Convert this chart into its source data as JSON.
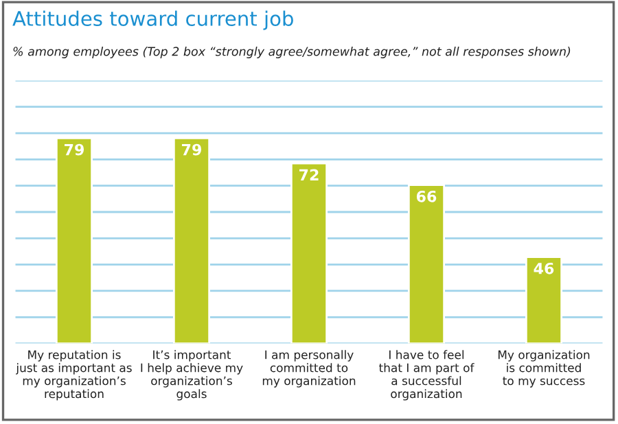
{
  "chart_data": {
    "type": "bar",
    "title": "Attitudes toward current job",
    "subtitle": "% among employees (Top 2 box “strongly agree/somewhat agree,” not all responses shown)",
    "categories": [
      "My reputation is\njust as important as\nmy organization’s\nreputation",
      "It’s important\nI help achieve my\norganization’s\ngoals",
      "I am personally\ncommitted to\nmy organization",
      "I have to feel\nthat I am part of\na successful\norganization",
      "My organization\nis committed\nto my success"
    ],
    "values": [
      79,
      79,
      72,
      66,
      46
    ],
    "color": "#bccb26",
    "data_labels": true,
    "ylim": [
      22,
      95
    ],
    "yticks": [
      {
        "value": 22,
        "label": null
      },
      {
        "value": 29.3,
        "label": null
      },
      {
        "value": 36.6,
        "label": null
      },
      {
        "value": 43.9,
        "label": null
      },
      {
        "value": 51.2,
        "label": null
      },
      {
        "value": 58.5,
        "label": null
      },
      {
        "value": 65.8,
        "label": null
      },
      {
        "value": 73.1,
        "label": null
      },
      {
        "value": 80.4,
        "label": null
      },
      {
        "value": 87.7,
        "label": null
      },
      {
        "value": 95,
        "label": null
      }
    ],
    "grid": "y",
    "legend": false
  }
}
